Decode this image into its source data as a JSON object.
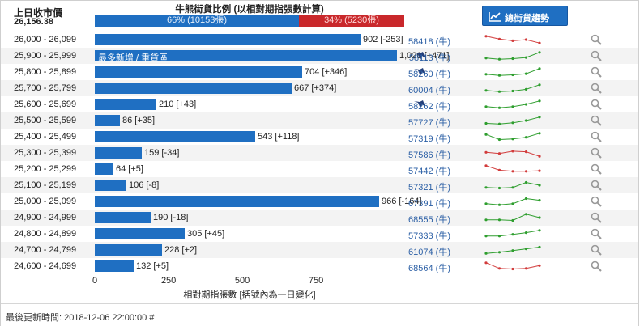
{
  "header": {
    "prev_close_label": "上日收市價",
    "prev_close_value": "26,156.38",
    "ratio_title": "牛熊街貨比例 (以相對期指張數計算)",
    "bull_text": "66% (10153張)",
    "bear_text": "34% (5230張)",
    "bull_ratio": 0.66,
    "trend_button_label": "總街貨趨勢",
    "trend_icon": "line-chart-icon"
  },
  "colors": {
    "bar": "#1f6fc2",
    "bear": "#c9282b",
    "up": "#2e9e2e",
    "down": "#d23b3b",
    "link": "#2b5fa5"
  },
  "chart_data": {
    "type": "bar",
    "orientation": "horizontal",
    "xlabel": "相對期指張數 [括號內為一日變化]",
    "xticks": [
      0,
      250,
      500,
      750
    ],
    "xlim": [
      0,
      1050
    ],
    "categories": [
      "26,000 - 26,099",
      "25,900 - 25,999",
      "25,800 - 25,899",
      "25,700 - 25,799",
      "25,600 - 25,699",
      "25,500 - 25,599",
      "25,400 - 25,499",
      "25,300 - 25,399",
      "25,200 - 25,299",
      "25,100 - 25,199",
      "25,000 - 25,099",
      "24,900 - 24,999",
      "24,800 - 24,899",
      "24,700 - 24,799",
      "24,600 - 24,699"
    ],
    "values": [
      902,
      1026,
      704,
      667,
      210,
      86,
      543,
      159,
      64,
      106,
      966,
      190,
      305,
      228,
      132
    ],
    "changes": [
      "[-253]",
      "[+471]",
      "[+346]",
      "[+374]",
      "[+43]",
      "[+35]",
      "[+118]",
      "[-34]",
      "[+5]",
      "[-8]",
      "[-164]",
      "[-18]",
      "[+45]",
      "[+2]",
      "[+5]"
    ],
    "value_labels": [
      "902 [-253]",
      "1,026 [+471]",
      "704 [+346]",
      "667 [+374]",
      "210 [+43]",
      "86 [+35]",
      "543 [+118]",
      "159 [-34]",
      "64 [+5]",
      "106 [-8]",
      "966 [-164]",
      "190 [-18]",
      "305 [+45]",
      "228 [+2]",
      "132 [+5]"
    ],
    "annotation": {
      "row": 1,
      "text": "最多新增 / 重貨區"
    }
  },
  "rows": [
    {
      "code": "58418 (牛)",
      "icon": false,
      "trend": "down",
      "spark": [
        0.8,
        0.55,
        0.4,
        0.5,
        0.2
      ]
    },
    {
      "code": "58113 (牛)",
      "icon": true,
      "trend": "up",
      "spark": [
        0.3,
        0.2,
        0.25,
        0.35,
        0.8
      ]
    },
    {
      "code": "58260 (牛)",
      "icon": true,
      "trend": "up",
      "spark": [
        0.3,
        0.2,
        0.25,
        0.35,
        0.8
      ]
    },
    {
      "code": "60004 (牛)",
      "icon": false,
      "trend": "up",
      "spark": [
        0.3,
        0.2,
        0.25,
        0.4,
        0.8
      ]
    },
    {
      "code": "58262 (牛)",
      "icon": true,
      "trend": "up",
      "spark": [
        0.3,
        0.2,
        0.3,
        0.5,
        0.8
      ]
    },
    {
      "code": "57727 (牛)",
      "icon": false,
      "trend": "up",
      "spark": [
        0.25,
        0.2,
        0.3,
        0.5,
        0.8
      ]
    },
    {
      "code": "57319 (牛)",
      "icon": false,
      "trend": "up",
      "spark": [
        0.7,
        0.25,
        0.3,
        0.45,
        0.8
      ]
    },
    {
      "code": "57586 (牛)",
      "icon": false,
      "trend": "down",
      "spark": [
        0.55,
        0.45,
        0.65,
        0.6,
        0.2
      ]
    },
    {
      "code": "57442 (牛)",
      "icon": false,
      "trend": "down",
      "spark": [
        0.8,
        0.4,
        0.3,
        0.3,
        0.35
      ]
    },
    {
      "code": "57321 (牛)",
      "icon": false,
      "trend": "up",
      "spark": [
        0.3,
        0.25,
        0.3,
        0.75,
        0.5
      ]
    },
    {
      "code": "67391 (牛)",
      "icon": false,
      "trend": "up",
      "spark": [
        0.3,
        0.2,
        0.3,
        0.75,
        0.6
      ]
    },
    {
      "code": "68555 (牛)",
      "icon": false,
      "trend": "up",
      "spark": [
        0.3,
        0.3,
        0.25,
        0.8,
        0.5
      ]
    },
    {
      "code": "57333 (牛)",
      "icon": false,
      "trend": "up",
      "spark": [
        0.3,
        0.3,
        0.45,
        0.6,
        0.8
      ]
    },
    {
      "code": "61074 (牛)",
      "icon": false,
      "trend": "up",
      "spark": [
        0.2,
        0.3,
        0.45,
        0.6,
        0.75
      ]
    },
    {
      "code": "68564 (牛)",
      "icon": false,
      "trend": "down",
      "spark": [
        0.8,
        0.3,
        0.25,
        0.3,
        0.55
      ]
    }
  ],
  "footer": {
    "last_update": "最後更新時間: 2018-12-06 22:00:00 #"
  }
}
